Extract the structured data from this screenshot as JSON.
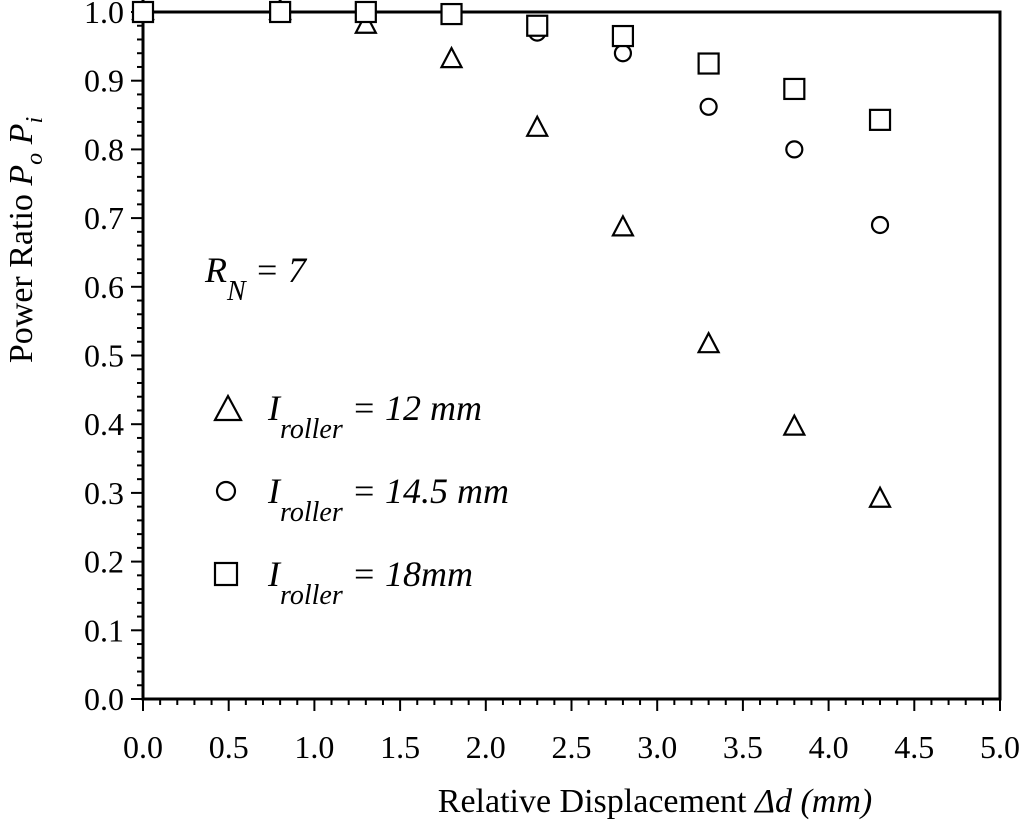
{
  "chart_data": {
    "type": "scatter",
    "title": "",
    "xlabel": {
      "prefix": "Relative Displacement ",
      "symbol": "Δd",
      "unit": " (mm)"
    },
    "ylabel": {
      "prefix": "Power Ratio  ",
      "num": "P",
      "num_sub": "o",
      "den": "P",
      "den_sub": "i"
    },
    "xlim": [
      0,
      5
    ],
    "ylim": [
      0,
      1
    ],
    "xticks": [
      "0.0",
      "0.5",
      "1.0",
      "1.5",
      "2.0",
      "2.5",
      "3.0",
      "3.5",
      "4.0",
      "4.5",
      "5.0"
    ],
    "yticks": [
      "0.0",
      "0.1",
      "0.2",
      "0.3",
      "0.4",
      "0.5",
      "0.6",
      "0.7",
      "0.8",
      "0.9",
      "1.0"
    ],
    "grid": false,
    "annotation": {
      "main": "R",
      "sub": "N",
      "rest": " = 7"
    },
    "legend_position": "left-center",
    "series": [
      {
        "name": "I_roller = 12 mm",
        "legend": {
          "main": "I",
          "sub": "roller",
          "rest": " = 12 mm"
        },
        "marker": "triangle",
        "x": [
          0.0,
          0.8,
          1.3,
          1.8,
          2.3,
          2.8,
          3.3,
          3.8,
          4.3
        ],
        "y": [
          1.0,
          1.0,
          0.98,
          0.93,
          0.83,
          0.685,
          0.515,
          0.395,
          0.29
        ]
      },
      {
        "name": "I_roller = 14.5 mm",
        "legend": {
          "main": "I",
          "sub": "roller",
          "rest": " = 14.5 mm"
        },
        "marker": "circle",
        "x": [
          0.0,
          0.8,
          1.3,
          1.8,
          2.3,
          2.8,
          3.3,
          3.8,
          4.3
        ],
        "y": [
          1.0,
          1.0,
          1.0,
          0.995,
          0.97,
          0.94,
          0.862,
          0.8,
          0.69
        ]
      },
      {
        "name": "I_roller = 18mm",
        "legend": {
          "main": "I",
          "sub": "roller",
          "rest": " = 18mm"
        },
        "marker": "square",
        "x": [
          0.0,
          0.8,
          1.3,
          1.8,
          2.3,
          2.8,
          3.3,
          3.8,
          4.3
        ],
        "y": [
          1.0,
          1.0,
          1.0,
          0.997,
          0.98,
          0.965,
          0.925,
          0.888,
          0.843
        ]
      }
    ]
  }
}
